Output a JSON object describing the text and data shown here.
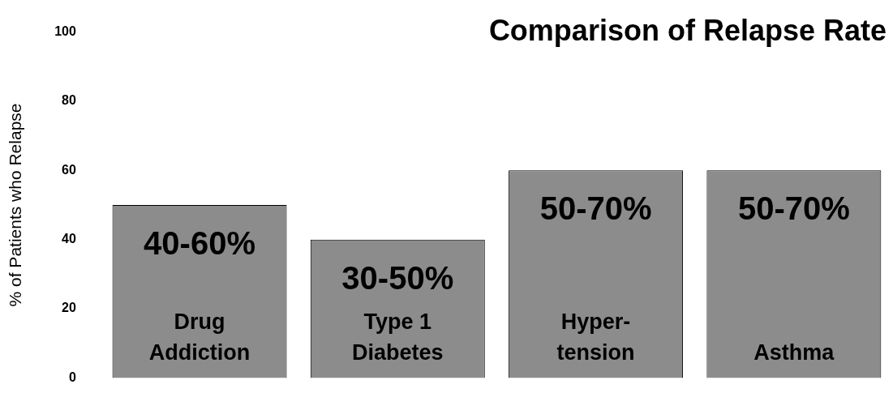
{
  "chart_data": {
    "type": "bar",
    "title": "Comparison of Relapse Rate",
    "ylabel": "% of Patients who Relapse",
    "categories": [
      "Drug\nAddiction",
      "Type 1\nDiabetes",
      "Hyper-\ntension",
      "Asthma"
    ],
    "values": [
      50,
      40,
      60,
      60
    ],
    "color": "#8c8c8c",
    "annotations": [
      {
        "text": "40-60%",
        "x": "Drug\nAddiction",
        "y": 50
      },
      {
        "text": "30-50%",
        "x": "Type 1\nDiabetes",
        "y": 40
      },
      {
        "text": "50-70%",
        "x": "Hyper-\ntension",
        "y": 60
      },
      {
        "text": "50-70%",
        "x": "Asthma",
        "y": 60
      }
    ],
    "ylim": [
      0,
      100
    ],
    "yticks": [
      0,
      20,
      40,
      60,
      80,
      100
    ],
    "grid": false,
    "legend": false
  }
}
